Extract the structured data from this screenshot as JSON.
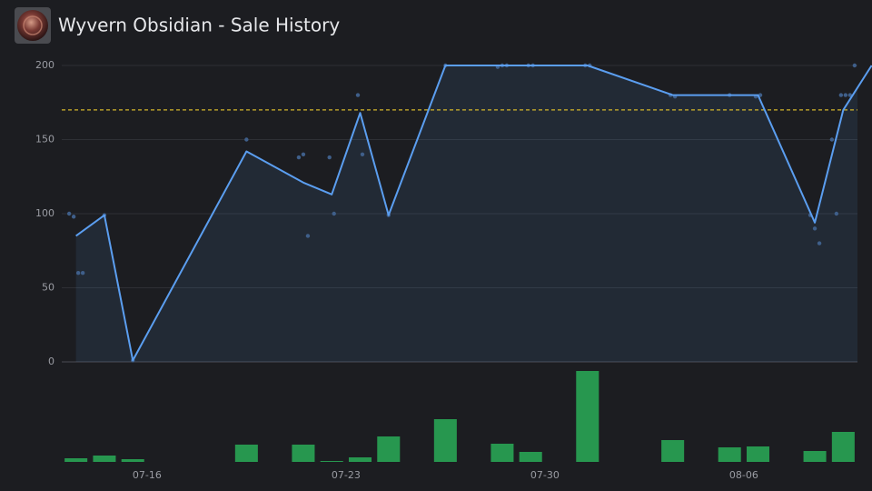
{
  "chart_data": {
    "type": "line",
    "title": "Wyvern Obsidian - Sale History",
    "x": [
      "07-13",
      "07-14",
      "07-15",
      "07-19",
      "07-21",
      "07-22",
      "07-23",
      "07-24",
      "07-26",
      "07-31",
      "08-03",
      "08-04",
      "08-06",
      "08-08",
      "08-09",
      "08-10"
    ],
    "values": [
      85,
      99,
      1,
      142,
      121,
      113,
      168,
      99,
      200,
      200,
      180,
      180,
      180,
      94,
      170,
      200
    ],
    "color": "#5b9ef0",
    "area": true,
    "xlim": [
      "07-13",
      "08-09"
    ],
    "xticks": [
      "07-16",
      "07-23",
      "07-30",
      "08-06"
    ],
    "ylim": [
      0,
      200
    ],
    "yticks": [
      0,
      50,
      100,
      150,
      200
    ],
    "grid": true,
    "reference_line": {
      "value": 170,
      "color": "#d4b62a"
    },
    "sales": {
      "x": [
        "07-13",
        "07-13",
        "07-13",
        "07-13",
        "07-14",
        "07-15",
        "07-19",
        "07-21",
        "07-21",
        "07-21",
        "07-22",
        "07-22",
        "07-23",
        "07-23",
        "07-24",
        "07-26",
        "07-28",
        "07-28",
        "07-28",
        "07-29",
        "07-29",
        "07-31",
        "07-31",
        "08-03",
        "08-03",
        "08-05",
        "08-06",
        "08-06",
        "08-08",
        "08-08",
        "08-08",
        "08-09",
        "08-09",
        "08-09",
        "08-09",
        "08-09",
        "08-09"
      ],
      "values": [
        100,
        98,
        60,
        60,
        99,
        1,
        150,
        138,
        140,
        85,
        138,
        100,
        180,
        140,
        99,
        200,
        199,
        200,
        200,
        200,
        200,
        200,
        200,
        180,
        179,
        180,
        179,
        180,
        99,
        90,
        80,
        150,
        100,
        180,
        180,
        180,
        200
      ],
      "color": "#3f5f8a"
    },
    "volume": {
      "x": [
        "07-13",
        "07-14",
        "07-15",
        "07-19",
        "07-21",
        "07-22",
        "07-23",
        "07-24",
        "07-26",
        "07-28",
        "07-29",
        "07-31",
        "08-03",
        "08-05",
        "08-06",
        "08-08",
        "08-09"
      ],
      "values": [
        4,
        7,
        3,
        19,
        19,
        1,
        5,
        28,
        47,
        20,
        11,
        100,
        24,
        16,
        17,
        12,
        33
      ],
      "color": "#27974f"
    }
  }
}
